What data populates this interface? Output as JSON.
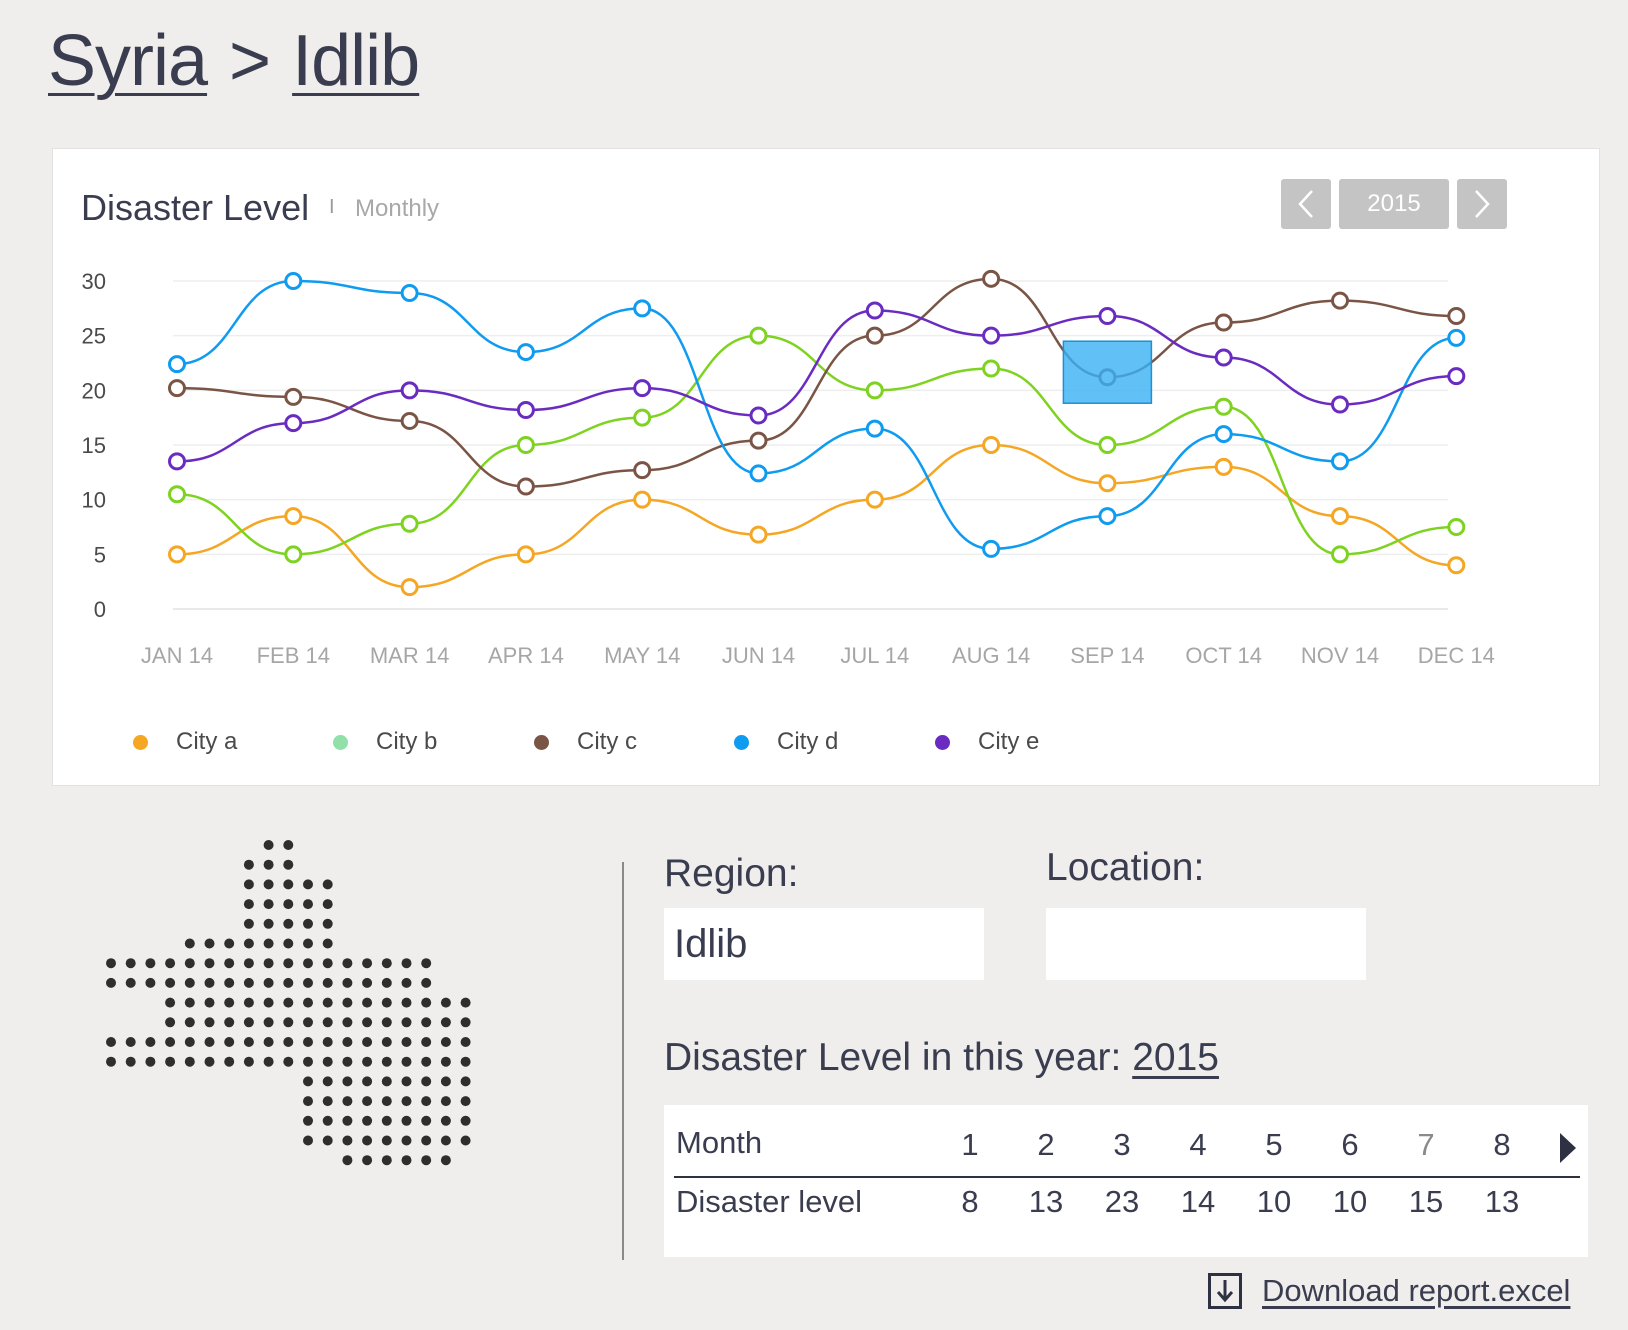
{
  "breadcrumb": {
    "country": "Syria",
    "separator": ">",
    "region": "Idlib"
  },
  "card": {
    "title": "Disaster Level",
    "separator": "I",
    "subtitle": "Monthly",
    "year": "2015"
  },
  "chart_data": {
    "type": "line",
    "title": "Disaster Level",
    "subtitle": "Monthly",
    "categories": [
      "JAN 14",
      "FEB 14",
      "MAR 14",
      "APR 14",
      "MAY 14",
      "JUN 14",
      "JUL 14",
      "AUG 14",
      "SEP 14",
      "OCT 14",
      "NOV 14",
      "DEC 14"
    ],
    "ylim": [
      0,
      30
    ],
    "yticks": [
      0,
      5,
      10,
      15,
      20,
      25,
      30
    ],
    "grid": true,
    "legend_position": "bottom",
    "series": [
      {
        "name": "City a",
        "color": "#f5a623",
        "values": [
          5,
          8.5,
          2,
          5,
          10,
          6.8,
          10,
          15,
          11.5,
          13,
          8.5,
          4
        ]
      },
      {
        "name": "City b",
        "color": "#7ed321",
        "legend_color": "#90e0a8",
        "values": [
          10.5,
          5,
          7.8,
          15,
          17.5,
          25,
          20,
          22,
          15,
          18.5,
          5,
          7.5
        ]
      },
      {
        "name": "City c",
        "color": "#7a5546",
        "values": [
          20.2,
          19.4,
          17.2,
          11.2,
          12.7,
          15.4,
          25,
          30.2,
          21.2,
          26.2,
          28.2,
          26.8
        ]
      },
      {
        "name": "City d",
        "color": "#0e9bf0",
        "values": [
          22.4,
          30,
          28.9,
          23.5,
          27.5,
          12.4,
          16.5,
          5.5,
          8.5,
          16,
          13.5,
          24.8
        ]
      },
      {
        "name": "City e",
        "color": "#6a2cc0",
        "values": [
          13.5,
          17,
          20,
          18.2,
          20.2,
          17.7,
          27.3,
          25,
          26.8,
          23,
          18.7,
          21.3
        ]
      }
    ]
  },
  "details": {
    "region_label": "Region:",
    "region_value": "Idlib",
    "location_label": "Location:",
    "location_value": "",
    "year_label": "Disaster Level in this year:",
    "year_value": "2015"
  },
  "table": {
    "row_labels": [
      "Month",
      "Disaster level"
    ],
    "months": [
      "1",
      "2",
      "3",
      "4",
      "5",
      "6",
      "7",
      "8"
    ],
    "levels": [
      "8",
      "13",
      "23",
      "14",
      "10",
      "10",
      "15",
      "13"
    ]
  },
  "download": {
    "label": "Download report.excel",
    "icon": "download-icon"
  }
}
